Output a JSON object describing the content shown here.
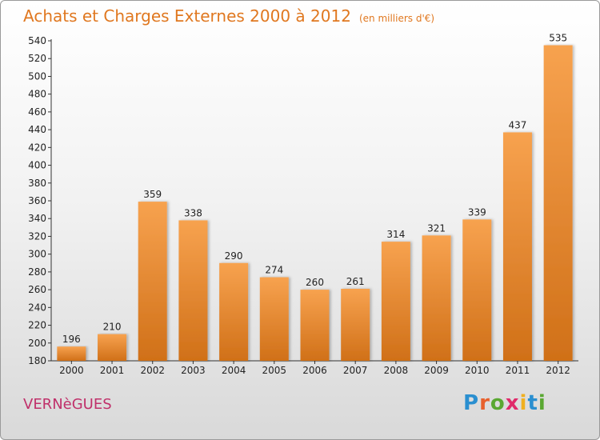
{
  "chart_data": {
    "type": "bar",
    "title": "Achats et Charges Externes 2000 à 2012",
    "subtitle": "(en milliers d'€)",
    "categories": [
      "2000",
      "2001",
      "2002",
      "2003",
      "2004",
      "2005",
      "2006",
      "2007",
      "2008",
      "2009",
      "2010",
      "2011",
      "2012"
    ],
    "values": [
      196,
      210,
      359,
      338,
      290,
      274,
      260,
      261,
      314,
      321,
      339,
      437,
      535
    ],
    "ylim": [
      180,
      540
    ],
    "yticks": [
      180,
      200,
      220,
      240,
      260,
      280,
      300,
      320,
      340,
      360,
      380,
      400,
      420,
      440,
      460,
      480,
      500,
      520,
      540
    ],
    "grid": false,
    "legend": "none"
  },
  "commune": "VERNèGUES",
  "logo": {
    "letters": [
      "P",
      "r",
      "o",
      "x",
      "i",
      "t",
      "i"
    ],
    "colors": [
      "#2a8fd0",
      "#e8602c",
      "#5aa832",
      "#e02a6a",
      "#f0b020",
      "#2a8fd0",
      "#5aa832"
    ]
  },
  "colors": {
    "bar_light": "#f7a24f",
    "bar_dark": "#d07018",
    "title": "#e07820",
    "commune": "#c0306a"
  }
}
